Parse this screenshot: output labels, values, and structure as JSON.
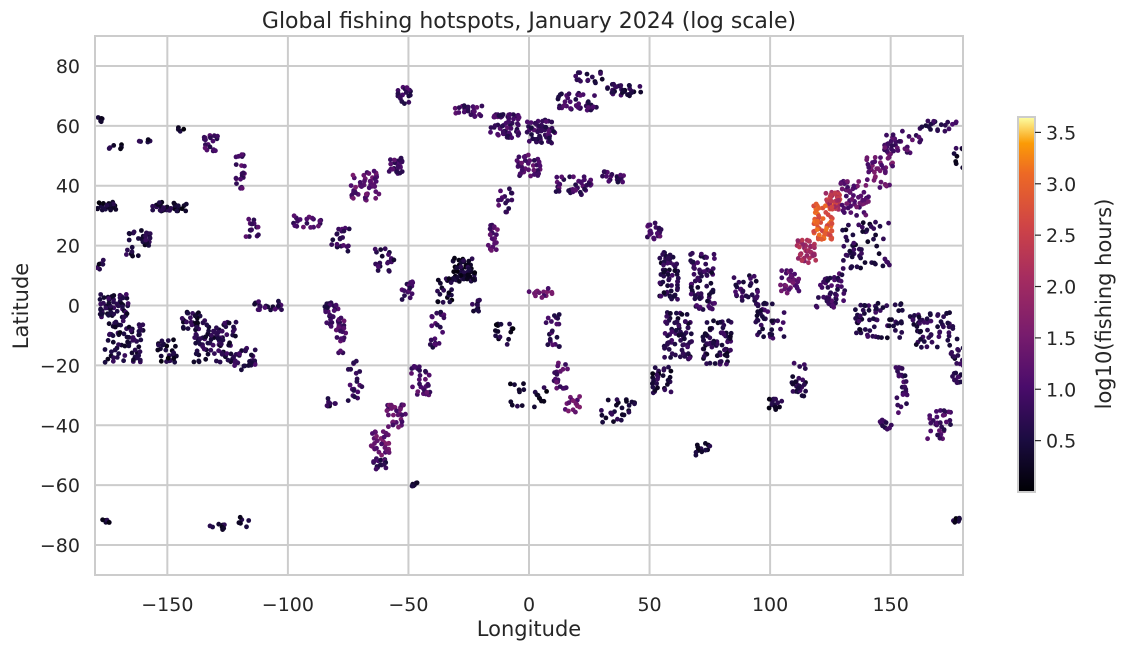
{
  "chart_data": {
    "type": "scatter",
    "title": "Global fishing hotspots, January 2024 (log scale)",
    "xlabel": "Longitude",
    "ylabel": "Latitude",
    "xlim": [
      -180,
      180
    ],
    "ylim": [
      -90,
      90
    ],
    "xticks": [
      -150,
      -100,
      -50,
      0,
      50,
      100,
      150
    ],
    "xtick_labels": [
      "−150",
      "−100",
      "−50",
      "0",
      "50",
      "100",
      "150"
    ],
    "yticks": [
      -80,
      -60,
      -40,
      -20,
      0,
      20,
      40,
      60,
      80
    ],
    "ytick_labels": [
      "−80",
      "−60",
      "−40",
      "−20",
      "0",
      "20",
      "40",
      "60",
      "80"
    ],
    "grid": true,
    "colormap": "inferno",
    "colorbar": {
      "label": "log10(fishing hours)",
      "range": [
        0.0,
        3.65
      ],
      "ticks": [
        0.5,
        1.0,
        1.5,
        2.0,
        2.5,
        3.0,
        3.5
      ],
      "tick_labels": [
        "0.5",
        "1.0",
        "1.5",
        "2.0",
        "2.5",
        "3.0",
        "3.5"
      ]
    },
    "clusters": [
      {
        "lon": -178,
        "lat": 62,
        "spread_lon": 1,
        "spread_lat": 1,
        "n": 5,
        "value": 0.3
      },
      {
        "lon": -172,
        "lat": 53,
        "spread_lon": 4,
        "spread_lat": 1,
        "n": 6,
        "value": 0.4
      },
      {
        "lon": -160,
        "lat": 55,
        "spread_lon": 3,
        "spread_lat": 1,
        "n": 5,
        "value": 0.5
      },
      {
        "lon": -145,
        "lat": 59,
        "spread_lon": 2,
        "spread_lat": 1,
        "n": 4,
        "value": 0.4
      },
      {
        "lon": -175,
        "lat": 33,
        "spread_lon": 4,
        "spread_lat": 1.5,
        "n": 25,
        "value": 0.3
      },
      {
        "lon": -150,
        "lat": 33,
        "spread_lon": 8,
        "spread_lat": 1.5,
        "n": 35,
        "value": 0.4
      },
      {
        "lon": -162,
        "lat": 21,
        "spread_lon": 5,
        "spread_lat": 5,
        "n": 30,
        "value": 0.5
      },
      {
        "lon": -178,
        "lat": 14,
        "spread_lon": 1.5,
        "spread_lat": 2,
        "n": 6,
        "value": 0.5
      },
      {
        "lon": -172,
        "lat": 0,
        "spread_lon": 6,
        "spread_lat": 4,
        "n": 60,
        "value": 0.6
      },
      {
        "lon": -168,
        "lat": -12,
        "spread_lon": 8,
        "spread_lat": 7,
        "n": 70,
        "value": 0.5
      },
      {
        "lon": -130,
        "lat": -12,
        "spread_lon": 9,
        "spread_lat": 7,
        "n": 90,
        "value": 0.6
      },
      {
        "lon": -118,
        "lat": -18,
        "spread_lon": 5,
        "spread_lat": 4,
        "n": 30,
        "value": 0.7
      },
      {
        "lon": -140,
        "lat": -5,
        "spread_lon": 4,
        "spread_lat": 3,
        "n": 25,
        "value": 0.5
      },
      {
        "lon": -150,
        "lat": -15,
        "spread_lon": 4,
        "spread_lat": 4,
        "n": 25,
        "value": 0.4
      },
      {
        "lon": -108,
        "lat": 0,
        "spread_lon": 6,
        "spread_lat": 1.5,
        "n": 20,
        "value": 0.7
      },
      {
        "lon": -82,
        "lat": -3,
        "spread_lon": 3,
        "spread_lat": 4,
        "n": 25,
        "value": 0.8
      },
      {
        "lon": -78,
        "lat": -10,
        "spread_lon": 2,
        "spread_lat": 6,
        "n": 25,
        "value": 1.0
      },
      {
        "lon": -72,
        "lat": -25,
        "spread_lon": 3,
        "spread_lat": 7,
        "n": 20,
        "value": 0.8
      },
      {
        "lon": -82,
        "lat": -32,
        "spread_lon": 2,
        "spread_lat": 2,
        "n": 8,
        "value": 0.6
      },
      {
        "lon": -120,
        "lat": 45,
        "spread_lon": 2,
        "spread_lat": 6,
        "n": 20,
        "value": 1.0
      },
      {
        "lon": -132,
        "lat": 54,
        "spread_lon": 3,
        "spread_lat": 3,
        "n": 18,
        "value": 0.9
      },
      {
        "lon": -115,
        "lat": 26,
        "spread_lon": 3,
        "spread_lat": 3,
        "n": 15,
        "value": 0.9
      },
      {
        "lon": -92,
        "lat": 28,
        "spread_lon": 6,
        "spread_lat": 2,
        "n": 20,
        "value": 1.0
      },
      {
        "lon": -78,
        "lat": 22,
        "spread_lon": 4,
        "spread_lat": 4,
        "n": 20,
        "value": 0.8
      },
      {
        "lon": -68,
        "lat": 40,
        "spread_lon": 6,
        "spread_lat": 5,
        "n": 45,
        "value": 1.2
      },
      {
        "lon": -55,
        "lat": 47,
        "spread_lon": 3,
        "spread_lat": 3,
        "n": 25,
        "value": 0.9
      },
      {
        "lon": -60,
        "lat": 15,
        "spread_lon": 4,
        "spread_lat": 4,
        "n": 20,
        "value": 0.7
      },
      {
        "lon": -50,
        "lat": 5,
        "spread_lon": 3,
        "spread_lat": 3,
        "n": 15,
        "value": 0.8
      },
      {
        "lon": -38,
        "lat": -8,
        "spread_lon": 3,
        "spread_lat": 6,
        "n": 20,
        "value": 0.8
      },
      {
        "lon": -45,
        "lat": -25,
        "spread_lon": 4,
        "spread_lat": 5,
        "n": 30,
        "value": 1.0
      },
      {
        "lon": -55,
        "lat": -37,
        "spread_lon": 4,
        "spread_lat": 4,
        "n": 30,
        "value": 1.2
      },
      {
        "lon": -62,
        "lat": -46,
        "spread_lon": 4,
        "spread_lat": 4,
        "n": 35,
        "value": 1.3
      },
      {
        "lon": -62,
        "lat": -53,
        "spread_lon": 3,
        "spread_lat": 2,
        "n": 15,
        "value": 0.8
      },
      {
        "lon": -48,
        "lat": -60,
        "spread_lon": 2,
        "spread_lat": 1,
        "n": 6,
        "value": 0.6
      },
      {
        "lon": -52,
        "lat": 70,
        "spread_lon": 3,
        "spread_lat": 3,
        "n": 20,
        "value": 0.8
      },
      {
        "lon": -25,
        "lat": 65,
        "spread_lon": 6,
        "spread_lat": 2,
        "n": 25,
        "value": 0.9
      },
      {
        "lon": -10,
        "lat": 60,
        "spread_lon": 6,
        "spread_lat": 4,
        "n": 60,
        "value": 0.9
      },
      {
        "lon": 5,
        "lat": 58,
        "spread_lon": 6,
        "spread_lat": 4,
        "n": 55,
        "value": 0.8
      },
      {
        "lon": 20,
        "lat": 68,
        "spread_lon": 8,
        "spread_lat": 3,
        "n": 40,
        "value": 0.8
      },
      {
        "lon": 40,
        "lat": 72,
        "spread_lon": 8,
        "spread_lat": 2,
        "n": 30,
        "value": 0.6
      },
      {
        "lon": 25,
        "lat": 76,
        "spread_lon": 6,
        "spread_lat": 2,
        "n": 15,
        "value": 0.6
      },
      {
        "lon": 0,
        "lat": 47,
        "spread_lon": 5,
        "spread_lat": 4,
        "n": 35,
        "value": 1.0
      },
      {
        "lon": 18,
        "lat": 40,
        "spread_lon": 8,
        "spread_lat": 3,
        "n": 40,
        "value": 0.9
      },
      {
        "lon": 35,
        "lat": 43,
        "spread_lon": 5,
        "spread_lat": 2,
        "n": 20,
        "value": 0.8
      },
      {
        "lon": -10,
        "lat": 35,
        "spread_lon": 3,
        "spread_lat": 4,
        "n": 15,
        "value": 0.9
      },
      {
        "lon": -15,
        "lat": 22,
        "spread_lon": 2,
        "spread_lat": 5,
        "n": 20,
        "value": 1.1
      },
      {
        "lon": -27,
        "lat": 12,
        "spread_lon": 5,
        "spread_lat": 4,
        "n": 70,
        "value": 0.4
      },
      {
        "lon": -35,
        "lat": 5,
        "spread_lon": 3,
        "spread_lat": 4,
        "n": 20,
        "value": 0.4
      },
      {
        "lon": -22,
        "lat": 0,
        "spread_lon": 2,
        "spread_lat": 2,
        "n": 10,
        "value": 0.6
      },
      {
        "lon": 5,
        "lat": 4,
        "spread_lon": 5,
        "spread_lat": 2,
        "n": 15,
        "value": 1.3
      },
      {
        "lon": 10,
        "lat": -8,
        "spread_lon": 3,
        "spread_lat": 6,
        "n": 20,
        "value": 0.8
      },
      {
        "lon": 13,
        "lat": -22,
        "spread_lon": 3,
        "spread_lat": 6,
        "n": 20,
        "value": 1.0
      },
      {
        "lon": 18,
        "lat": -33,
        "spread_lon": 3,
        "spread_lat": 3,
        "n": 15,
        "value": 1.3
      },
      {
        "lon": -10,
        "lat": -10,
        "spread_lon": 4,
        "spread_lat": 5,
        "n": 15,
        "value": 0.4
      },
      {
        "lon": -5,
        "lat": -30,
        "spread_lon": 3,
        "spread_lat": 4,
        "n": 10,
        "value": 0.4
      },
      {
        "lon": 5,
        "lat": -30,
        "spread_lon": 3,
        "spread_lat": 4,
        "n": 10,
        "value": 0.4
      },
      {
        "lon": 38,
        "lat": -35,
        "spread_lon": 8,
        "spread_lat": 4,
        "n": 25,
        "value": 0.5
      },
      {
        "lon": 52,
        "lat": 25,
        "spread_lon": 3,
        "spread_lat": 3,
        "n": 20,
        "value": 1.0
      },
      {
        "lon": 58,
        "lat": 10,
        "spread_lon": 4,
        "spread_lat": 8,
        "n": 60,
        "value": 0.6
      },
      {
        "lon": 72,
        "lat": 8,
        "spread_lon": 5,
        "spread_lat": 10,
        "n": 70,
        "value": 0.7
      },
      {
        "lon": 62,
        "lat": -10,
        "spread_lon": 6,
        "spread_lat": 8,
        "n": 70,
        "value": 0.6
      },
      {
        "lon": 78,
        "lat": -12,
        "spread_lon": 6,
        "spread_lat": 8,
        "n": 70,
        "value": 0.6
      },
      {
        "lon": 55,
        "lat": -25,
        "spread_lon": 4,
        "spread_lat": 5,
        "n": 30,
        "value": 0.5
      },
      {
        "lon": 72,
        "lat": -48,
        "spread_lon": 3,
        "spread_lat": 2,
        "n": 12,
        "value": 0.4
      },
      {
        "lon": 90,
        "lat": 5,
        "spread_lon": 5,
        "spread_lat": 5,
        "n": 30,
        "value": 0.7
      },
      {
        "lon": 100,
        "lat": -5,
        "spread_lon": 6,
        "spread_lat": 6,
        "n": 40,
        "value": 0.7
      },
      {
        "lon": 108,
        "lat": 8,
        "spread_lon": 4,
        "spread_lat": 4,
        "n": 30,
        "value": 1.2
      },
      {
        "lon": 112,
        "lat": -25,
        "spread_lon": 3,
        "spread_lat": 6,
        "n": 25,
        "value": 0.6
      },
      {
        "lon": 102,
        "lat": -33,
        "spread_lon": 3,
        "spread_lat": 2,
        "n": 15,
        "value": 0.4
      },
      {
        "lon": 115,
        "lat": 18,
        "spread_lon": 4,
        "spread_lat": 4,
        "n": 40,
        "value": 2.0
      },
      {
        "lon": 122,
        "lat": 28,
        "spread_lon": 4,
        "spread_lat": 6,
        "n": 70,
        "value": 2.9
      },
      {
        "lon": 126,
        "lat": 35,
        "spread_lon": 3,
        "spread_lat": 3,
        "n": 40,
        "value": 2.3
      },
      {
        "lon": 135,
        "lat": 36,
        "spread_lon": 6,
        "spread_lat": 6,
        "n": 50,
        "value": 1.2
      },
      {
        "lon": 145,
        "lat": 45,
        "spread_lon": 6,
        "spread_lat": 6,
        "n": 40,
        "value": 1.3
      },
      {
        "lon": 155,
        "lat": 55,
        "spread_lon": 8,
        "spread_lat": 4,
        "n": 35,
        "value": 1.0
      },
      {
        "lon": 170,
        "lat": 60,
        "spread_lon": 8,
        "spread_lat": 2,
        "n": 20,
        "value": 0.8
      },
      {
        "lon": 140,
        "lat": 20,
        "spread_lon": 10,
        "spread_lat": 8,
        "n": 60,
        "value": 0.6
      },
      {
        "lon": 125,
        "lat": 5,
        "spread_lon": 6,
        "spread_lat": 6,
        "n": 50,
        "value": 0.8
      },
      {
        "lon": 145,
        "lat": -5,
        "spread_lon": 10,
        "spread_lat": 6,
        "n": 60,
        "value": 0.6
      },
      {
        "lon": 168,
        "lat": -8,
        "spread_lon": 10,
        "spread_lat": 6,
        "n": 60,
        "value": 0.6
      },
      {
        "lon": 155,
        "lat": -28,
        "spread_lon": 3,
        "spread_lat": 8,
        "n": 25,
        "value": 0.8
      },
      {
        "lon": 170,
        "lat": -40,
        "spread_lon": 5,
        "spread_lat": 5,
        "n": 30,
        "value": 0.9
      },
      {
        "lon": 178,
        "lat": -20,
        "spread_lon": 3,
        "spread_lat": 6,
        "n": 25,
        "value": 0.6
      },
      {
        "lon": 148,
        "lat": -40,
        "spread_lon": 3,
        "spread_lat": 2,
        "n": 10,
        "value": 0.7
      },
      {
        "lon": 178,
        "lat": 50,
        "spread_lon": 2,
        "spread_lat": 4,
        "n": 8,
        "value": 0.5
      },
      {
        "lon": -130,
        "lat": -74,
        "spread_lon": 4,
        "spread_lat": 1,
        "n": 8,
        "value": 0.4
      },
      {
        "lon": -118,
        "lat": -72,
        "spread_lon": 3,
        "spread_lat": 2,
        "n": 6,
        "value": 0.4
      },
      {
        "lon": -176,
        "lat": -72,
        "spread_lon": 2,
        "spread_lat": 1,
        "n": 6,
        "value": 0.4
      },
      {
        "lon": 177,
        "lat": -72,
        "spread_lon": 2,
        "spread_lat": 1,
        "n": 6,
        "value": 0.4
      }
    ]
  }
}
